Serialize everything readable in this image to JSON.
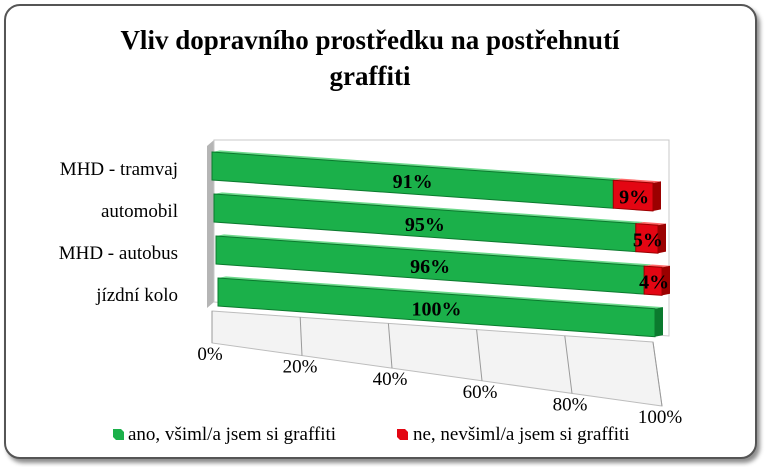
{
  "chart_data": {
    "type": "bar",
    "orientation": "horizontal",
    "stacked": "percent",
    "title": "Vliv dopravního prostředku na postřehnutí graffiti",
    "title_lines": [
      "Vliv dopravního prostředku na postřehnutí",
      "graffiti"
    ],
    "categories": [
      "MHD - tramvaj",
      "automobil",
      "MHD - autobus",
      "jízdní kolo"
    ],
    "series": [
      {
        "name": "ano, všiml/a jsem si graffiti",
        "values": [
          91,
          95,
          96,
          100
        ],
        "labels": [
          "91%",
          "95%",
          "96%",
          "100%"
        ],
        "color": "#1bb04a"
      },
      {
        "name": "ne, nevšiml/a jsem si graffiti",
        "values": [
          9,
          5,
          4,
          0
        ],
        "labels": [
          "9%",
          "5%",
          "4%",
          ""
        ],
        "color": "#e30613"
      }
    ],
    "xlim": [
      0,
      100
    ],
    "ticks": [
      "0%",
      "20%",
      "40%",
      "60%",
      "80%",
      "100%"
    ],
    "legend_position": "bottom"
  }
}
